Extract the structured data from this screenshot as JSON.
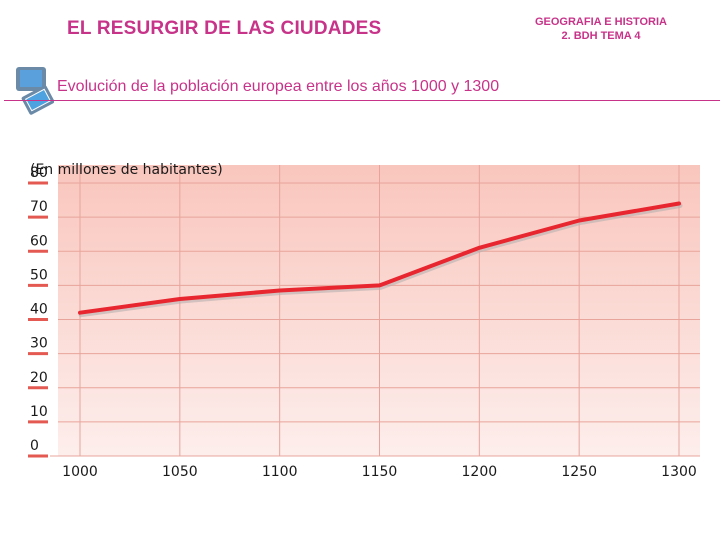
{
  "header": {
    "title": "EL RESURGIR DE LAS CIUDADES",
    "course_line1": "GEOGRAFIA E HISTORIA",
    "course_line2": "2. BDH  TEMA 4"
  },
  "subtitle": "Evolución de la población europea entre los años 1000 y 1300",
  "icons": {
    "subtitle_icon": "screen-icon"
  },
  "colors": {
    "accent": "#c8338a",
    "line": "#e8262f",
    "plot_bg_top": "#f9c6bd",
    "plot_bg_bottom": "#fdecea",
    "tick_bar": "#e45a52"
  },
  "chart_data": {
    "type": "line",
    "ylabel": "(En millones de habitantes)",
    "xlabel": "",
    "x": [
      1000,
      1050,
      1100,
      1150,
      1200,
      1250,
      1300
    ],
    "series": [
      {
        "values": [
          42,
          46,
          48.5,
          50,
          61,
          69,
          74
        ]
      }
    ],
    "xlim": [
      1000,
      1300
    ],
    "ylim": [
      0,
      80
    ],
    "yticks": [
      0,
      10,
      20,
      30,
      40,
      50,
      60,
      70,
      80
    ],
    "xticks": [
      1000,
      1050,
      1100,
      1150,
      1200,
      1250,
      1300
    ],
    "grid": true
  }
}
